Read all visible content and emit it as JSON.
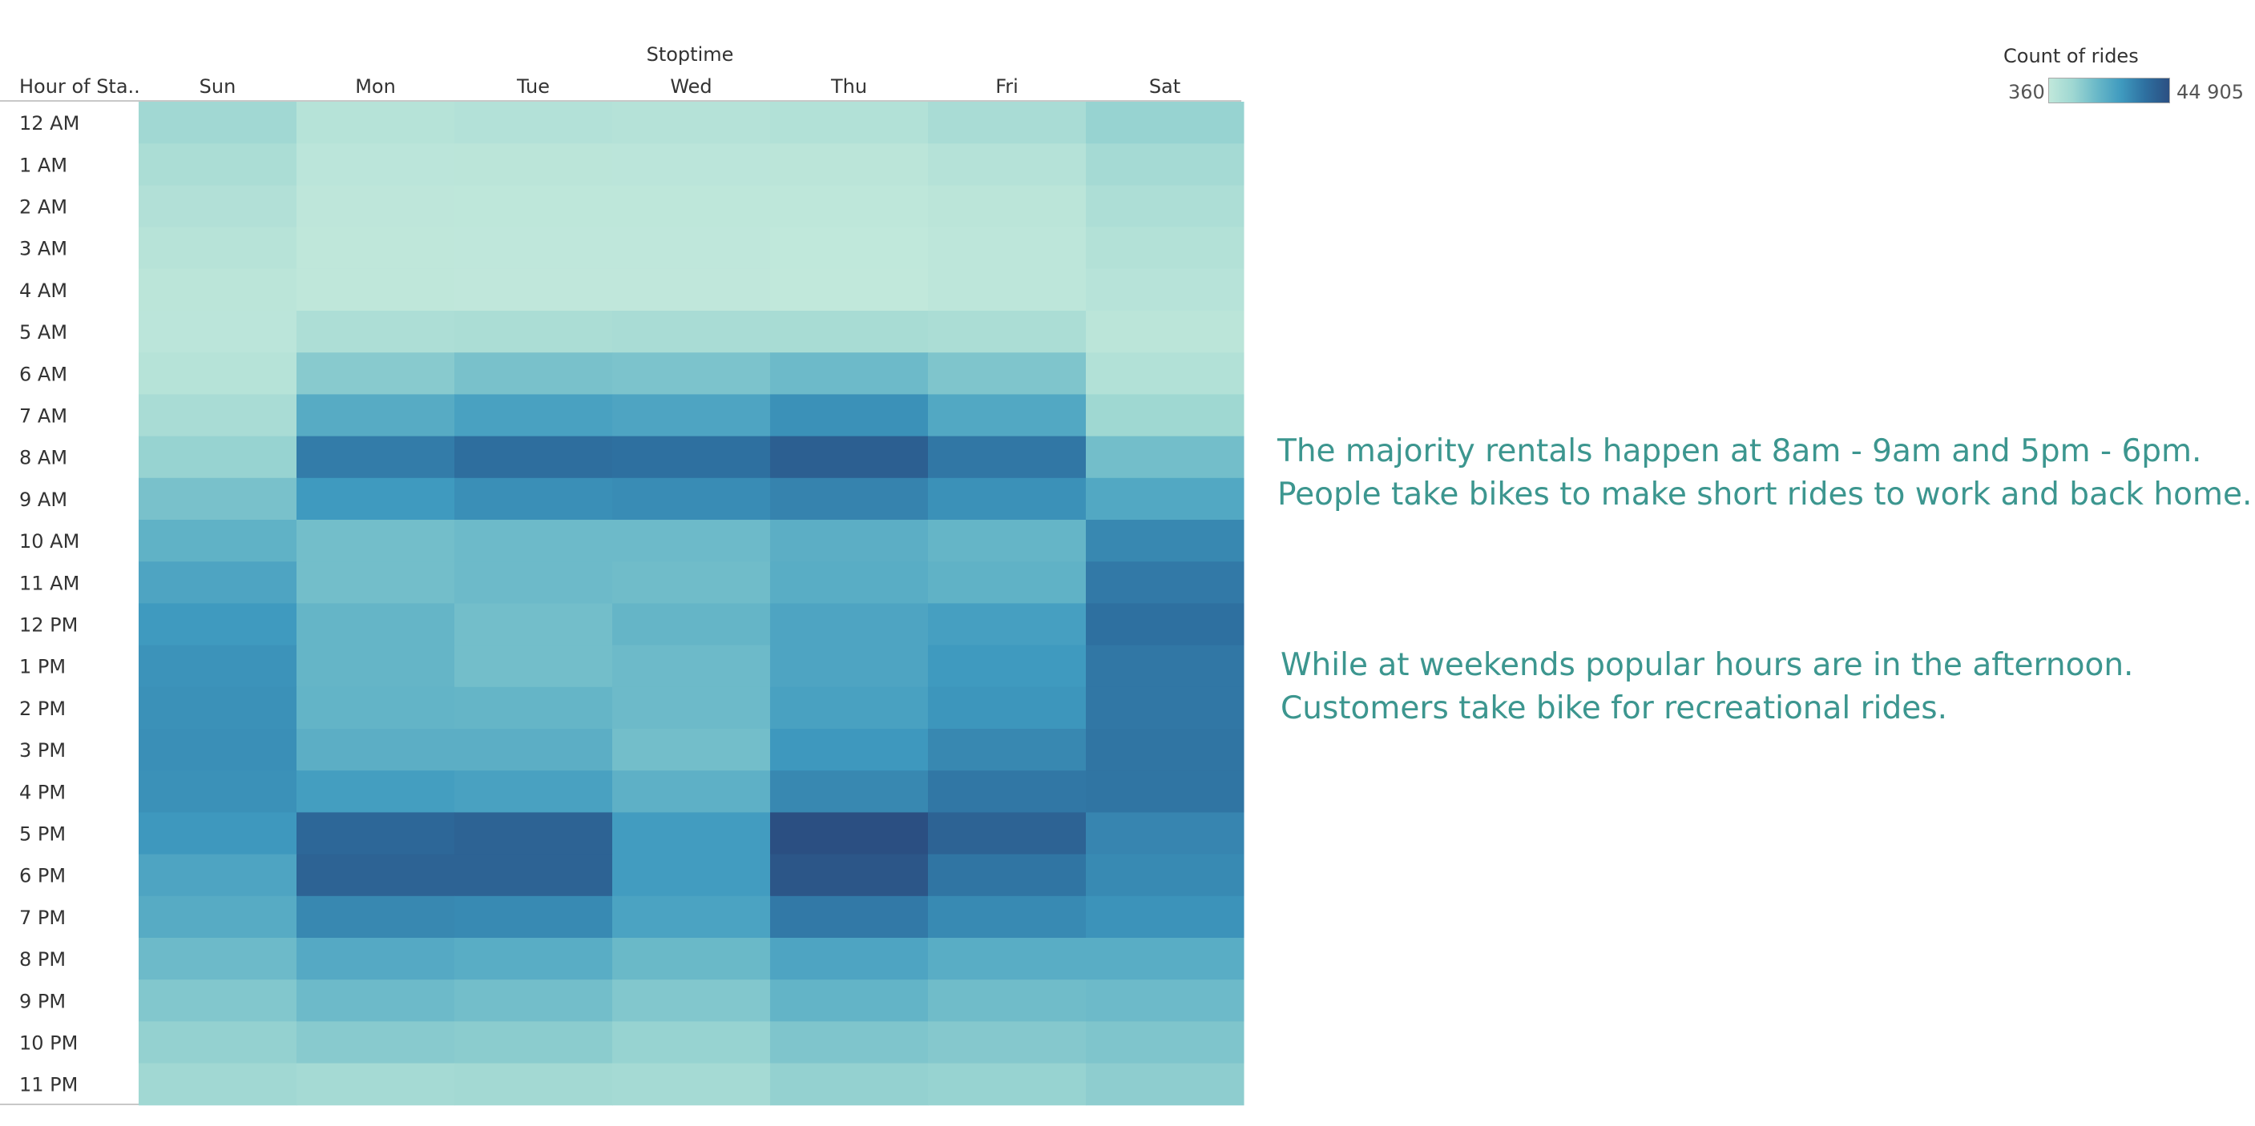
{
  "chart_data": {
    "type": "heatmap",
    "title": "",
    "column_field_label": "Stoptime",
    "row_field_label": "Hour of Sta..",
    "columns": [
      "Sun",
      "Mon",
      "Tue",
      "Wed",
      "Thu",
      "Fri",
      "Sat"
    ],
    "rows": [
      "12 AM",
      "1 AM",
      "2 AM",
      "3 AM",
      "4 AM",
      "5 AM",
      "6 AM",
      "7 AM",
      "8 AM",
      "9 AM",
      "10 AM",
      "11 AM",
      "12 PM",
      "1 PM",
      "2 PM",
      "3 PM",
      "4 PM",
      "5 PM",
      "6 PM",
      "7 PM",
      "8 PM",
      "9 PM",
      "10 PM",
      "11 PM"
    ],
    "values": [
      [
        8500,
        3200,
        3800,
        3500,
        4200,
        6500,
        10500
      ],
      [
        6000,
        1800,
        1900,
        1800,
        2000,
        3500,
        7500
      ],
      [
        4300,
        1200,
        1100,
        1100,
        1100,
        2000,
        5500
      ],
      [
        3000,
        900,
        800,
        800,
        600,
        1300,
        4000
      ],
      [
        2000,
        900,
        700,
        700,
        360,
        1400,
        2800
      ],
      [
        1800,
        5500,
        6000,
        6500,
        6800,
        6000,
        2000
      ],
      [
        3200,
        13000,
        15500,
        15000,
        17500,
        14500,
        4200
      ],
      [
        6500,
        22000,
        25000,
        24000,
        29000,
        23000,
        9000
      ],
      [
        10500,
        33500,
        36500,
        36000,
        40500,
        34500,
        16500
      ],
      [
        15500,
        27000,
        29500,
        30000,
        32000,
        29000,
        23000
      ],
      [
        20000,
        16500,
        17500,
        17500,
        21000,
        19000,
        31000
      ],
      [
        24000,
        16500,
        17500,
        17000,
        21500,
        20000,
        34000
      ],
      [
        27000,
        19000,
        16500,
        19000,
        24000,
        25500,
        36000
      ],
      [
        28500,
        19000,
        16500,
        17500,
        24000,
        27000,
        34500
      ],
      [
        29000,
        19500,
        19000,
        17500,
        25000,
        28000,
        34500
      ],
      [
        29500,
        21000,
        21000,
        16500,
        27500,
        31000,
        35000
      ],
      [
        29000,
        26000,
        25000,
        20500,
        31000,
        34500,
        35000
      ],
      [
        27500,
        38500,
        39500,
        26500,
        44905,
        39500,
        31500
      ],
      [
        24000,
        39500,
        39500,
        26500,
        43000,
        35000,
        30500
      ],
      [
        22000,
        31000,
        30500,
        24500,
        34000,
        30500,
        28500
      ],
      [
        17500,
        22500,
        21500,
        18000,
        24000,
        21500,
        21500
      ],
      [
        14000,
        17500,
        16500,
        14000,
        19500,
        17000,
        17500
      ],
      [
        11000,
        13000,
        12500,
        10500,
        14500,
        13500,
        14500
      ],
      [
        8500,
        7500,
        8000,
        7500,
        11000,
        10500,
        12000
      ]
    ],
    "color_scale": {
      "label": "Count of rides",
      "min": 360,
      "max": 44905,
      "min_label": "360",
      "max_label": "44 905",
      "colors": [
        "#c1e8db",
        "#9ed7d2",
        "#69b8c8",
        "#3f9abf",
        "#2e70a0",
        "#2b4f82"
      ]
    },
    "grid": false,
    "legend_position": "top-right"
  },
  "annotations": [
    {
      "lines": [
        "The majority rentals happen at 8am - 9am and 5pm - 6pm.",
        "People take bikes to make short rides to work and back home."
      ]
    },
    {
      "lines": [
        "While at weekends popular hours are in the afternoon.",
        "Customers take bike for recreational rides."
      ]
    }
  ],
  "annotation_color": "#3c968f"
}
